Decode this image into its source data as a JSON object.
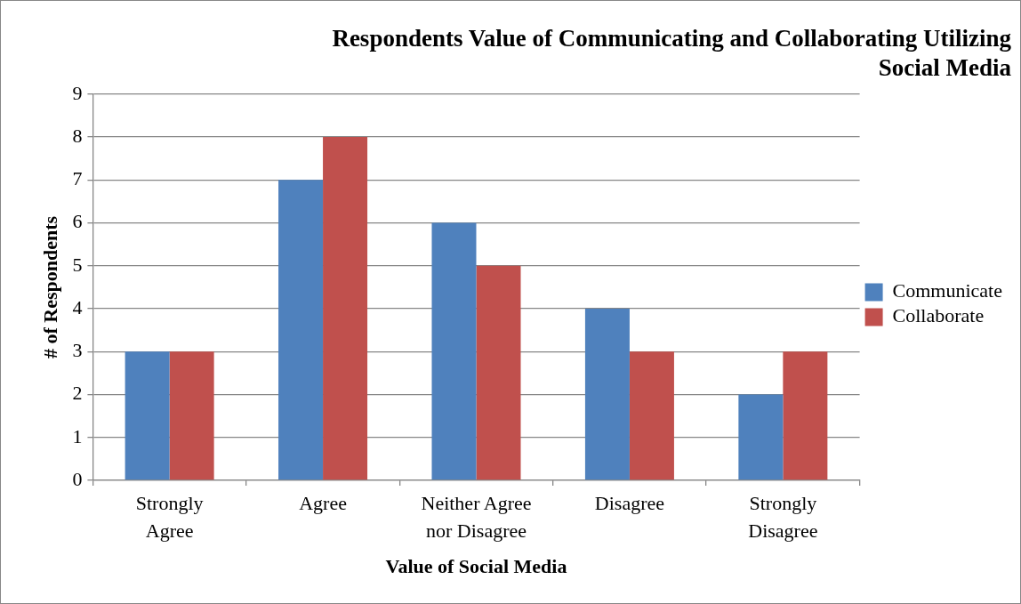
{
  "chart_data": {
    "type": "bar",
    "title": "Respondents Value of Communicating and Collaborating Utilizing Social Media",
    "xlabel": "Value of Social Media",
    "ylabel": "# of Respondents",
    "categories": [
      "Strongly Agree",
      "Agree",
      "Neither Agree nor Disagree",
      "Disagree",
      "Strongly Disagree"
    ],
    "series": [
      {
        "name": "Communicate",
        "color": "#4f81bd",
        "values": [
          3,
          7,
          6,
          4,
          2
        ]
      },
      {
        "name": "Collaborate",
        "color": "#c0504d",
        "values": [
          3,
          8,
          5,
          3,
          3
        ]
      }
    ],
    "ylim": [
      0,
      9
    ],
    "yticks": [
      0,
      1,
      2,
      3,
      4,
      5,
      6,
      7,
      8,
      9
    ],
    "grid": "y",
    "legend": "right"
  }
}
